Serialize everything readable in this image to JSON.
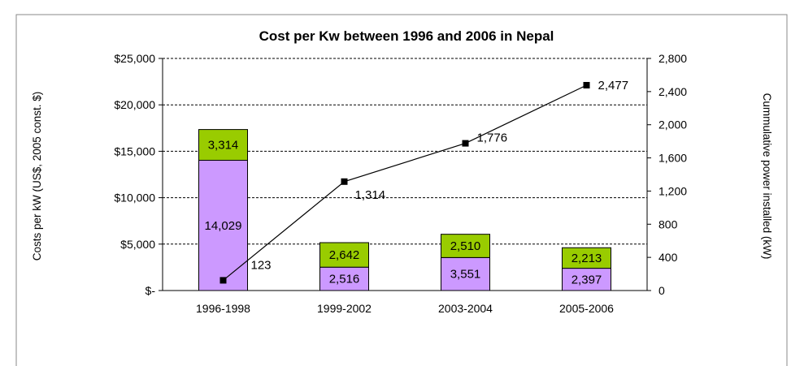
{
  "chart_data": {
    "type": "bar",
    "title": "Cost per Kw between 1996 and 2006 in Nepal",
    "ylabel": "Costs per kW (US$, 2005 const. $)",
    "y2label": "Cummulative power installed (kW)",
    "categories": [
      "1996-1998",
      "1999-2002",
      "2003-2004",
      "2005-2006"
    ],
    "ylim": [
      0,
      25000
    ],
    "y2lim": [
      0,
      2800
    ],
    "yticks": [
      "$-",
      "$5,000",
      "$10,000",
      "$15,000",
      "$20,000",
      "$25,000"
    ],
    "y2ticks": [
      "0",
      "400",
      "800",
      "1,200",
      "1,600",
      "2,000",
      "2,400",
      "2,800"
    ],
    "grid": "dashed-horizontal",
    "colors": {
      "bottom": "#cc99ff",
      "top": "#99cc00",
      "line": "#000000"
    },
    "stacked_series": [
      {
        "values": [
          14029,
          2516,
          3551,
          2397
        ],
        "labels": [
          "14,029",
          "2,516",
          "3,551",
          "2,397"
        ]
      },
      {
        "values": [
          3314,
          2642,
          2510,
          2213
        ],
        "labels": [
          "3,314",
          "2,642",
          "2,510",
          "2,213"
        ]
      }
    ],
    "line_series": {
      "values": [
        123,
        1314,
        1776,
        2477
      ],
      "labels": [
        "123",
        "1,314",
        "1,776",
        "2,477"
      ]
    }
  }
}
